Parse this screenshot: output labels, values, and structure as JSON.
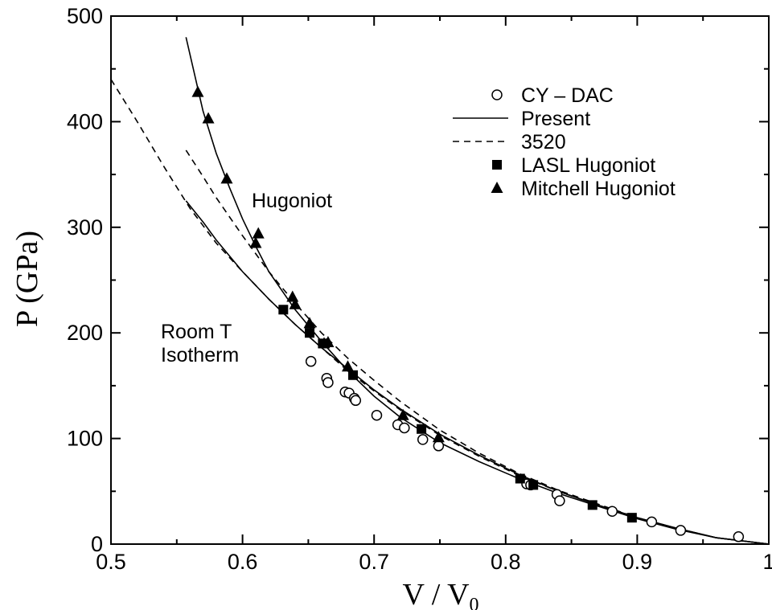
{
  "chart_data": {
    "type": "scatter",
    "xlabel": "V / V",
    "xlabel_sub": "0",
    "ylabel": "P (GPa)",
    "xlim": [
      0.5,
      1.0
    ],
    "ylim": [
      0,
      500
    ],
    "x_ticks": [
      0.5,
      0.6,
      0.7,
      0.8,
      0.9,
      1.0
    ],
    "x_tick_labels": [
      "0.5",
      "0.6",
      "0.7",
      "0.8",
      "0.9",
      "1"
    ],
    "y_ticks": [
      0,
      100,
      200,
      300,
      400,
      500
    ],
    "y_tick_labels": [
      "0",
      "100",
      "200",
      "300",
      "400",
      "500"
    ],
    "grid": false,
    "legend_position": "top-right",
    "annotations": {
      "hugoniot": "Hugoniot",
      "isotherm_line1": "Room T",
      "isotherm_line2": "Isotherm"
    },
    "series": [
      {
        "name": "CY – DAC",
        "style": "open-circle",
        "x": [
          0.652,
          0.664,
          0.665,
          0.678,
          0.681,
          0.685,
          0.686,
          0.702,
          0.718,
          0.723,
          0.737,
          0.749,
          0.816,
          0.819,
          0.839,
          0.841,
          0.881,
          0.911,
          0.933,
          0.977
        ],
        "y": [
          173,
          157,
          153,
          144,
          143,
          138,
          136,
          122,
          113,
          110,
          99,
          93,
          57,
          56,
          47,
          41,
          31,
          21,
          13,
          7
        ]
      },
      {
        "name": "Present",
        "style": "solid-line",
        "curves": [
          {
            "x": [
              0.557,
              0.57,
              0.58,
              0.59,
              0.6,
              0.61,
              0.62,
              0.64,
              0.66,
              0.68,
              0.7,
              0.72,
              0.75,
              0.78,
              0.81,
              0.84,
              0.87,
              0.9,
              0.93,
              0.96,
              1.0
            ],
            "y": [
              480,
              410,
              370,
              338,
              308,
              282,
              258,
              222,
              192,
              164,
              140,
              120,
              96,
              78,
              62,
              48,
              36,
              24,
              14,
              6,
              0
            ]
          },
          {
            "x": [
              0.557,
              0.57,
              0.58,
              0.6,
              0.62,
              0.64,
              0.66,
              0.68,
              0.7,
              0.72,
              0.75,
              0.78,
              0.81,
              0.84,
              0.87,
              0.9,
              0.93,
              0.96,
              1.0
            ],
            "y": [
              325,
              305,
              288,
              258,
              232,
              208,
              186,
              166,
              146,
              128,
              104,
              84,
              66,
              50,
              37,
              25,
              15,
              6,
              0
            ]
          }
        ]
      },
      {
        "name": "3520",
        "style": "dashed-line",
        "curves": [
          {
            "x": [
              0.5,
              0.52,
              0.54,
              0.56,
              0.58,
              0.6,
              0.62,
              0.64,
              0.66,
              0.68,
              0.7,
              0.72,
              0.75,
              0.78,
              0.81,
              0.84,
              0.87,
              0.9,
              0.93,
              0.96,
              1.0
            ],
            "y": [
              440,
              400,
              358,
              318,
              285,
              258,
              232,
              208,
              186,
              164,
              145,
              127,
              103,
              83,
              65,
              50,
              37,
              25,
              15,
              6,
              0
            ]
          },
          {
            "x": [
              0.557,
              0.57,
              0.58,
              0.6,
              0.62,
              0.64,
              0.66,
              0.68,
              0.7,
              0.72,
              0.75,
              0.78,
              0.81,
              0.84,
              0.87,
              0.9,
              0.93,
              0.96,
              1.0
            ],
            "y": [
              373,
              348,
              328,
              292,
              258,
              228,
              200,
              176,
              155,
              135,
              108,
              86,
              67,
              51,
              38,
              25,
              15,
              6,
              0
            ]
          }
        ]
      },
      {
        "name": "LASL Hugoniot",
        "style": "filled-square",
        "x": [
          0.631,
          0.651,
          0.661,
          0.684,
          0.736,
          0.811,
          0.821,
          0.866,
          0.896
        ],
        "y": [
          222,
          200,
          190,
          160,
          109,
          62,
          56,
          37,
          25
        ]
      },
      {
        "name": "Mitchell Hugoniot",
        "style": "filled-triangle",
        "x": [
          0.566,
          0.574,
          0.588,
          0.61,
          0.612,
          0.638,
          0.64,
          0.651,
          0.662,
          0.665,
          0.68,
          0.722,
          0.749
        ],
        "y": [
          428,
          403,
          346,
          285,
          294,
          234,
          227,
          209,
          190,
          191,
          168,
          122,
          101
        ]
      }
    ]
  }
}
